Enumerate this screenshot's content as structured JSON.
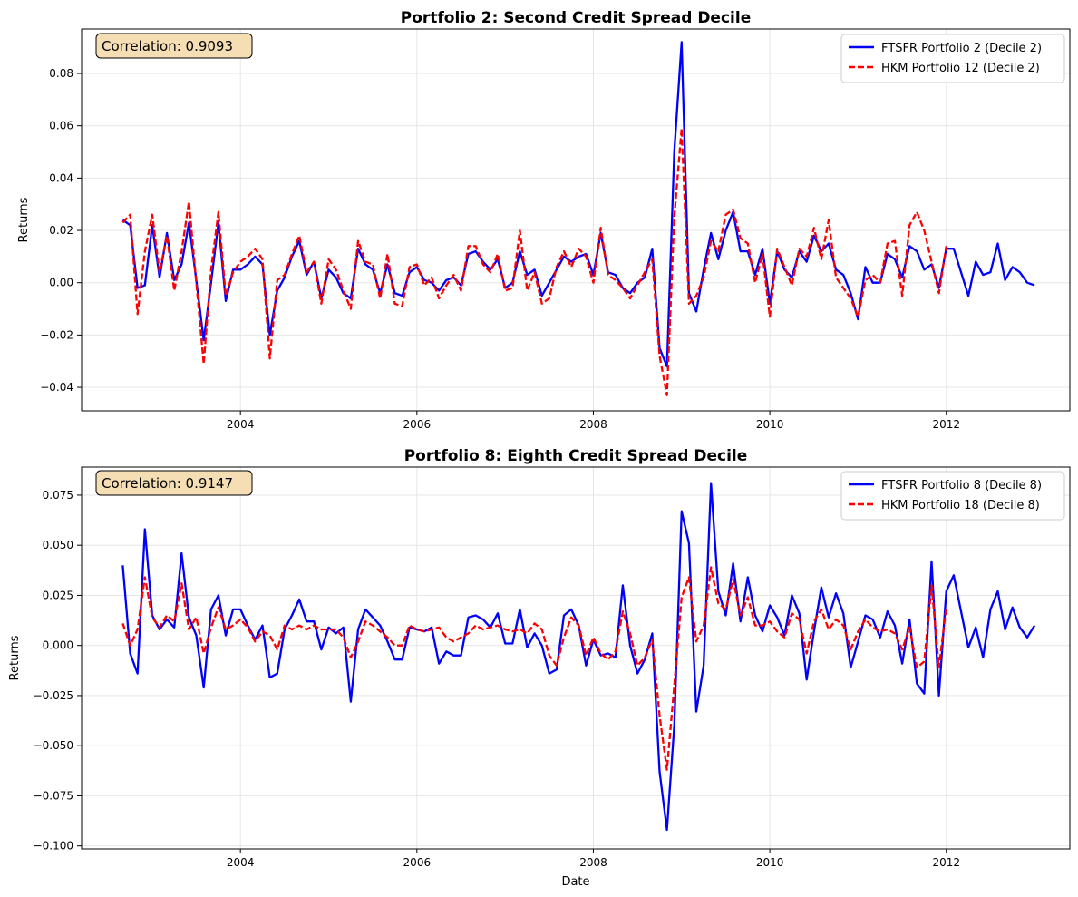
{
  "chart_data": [
    {
      "type": "line",
      "title": "Portfolio 2: Second Credit Spread Decile",
      "xlabel": "",
      "ylabel": "Returns",
      "annotation": "Correlation: 0.9093",
      "xlim": [
        2002.2,
        2013.4
      ],
      "ylim": [
        -0.049,
        0.097
      ],
      "xticks": [
        2004,
        2006,
        2008,
        2010,
        2012
      ],
      "xtick_labels": [
        "2004",
        "2006",
        "2008",
        "2010",
        "2012"
      ],
      "yticks": [
        -0.04,
        -0.02,
        0.0,
        0.02,
        0.04,
        0.06,
        0.08
      ],
      "ytick_labels": [
        "−0.04",
        "−0.02",
        "0.00",
        "0.02",
        "0.04",
        "0.06",
        "0.08"
      ],
      "grid": true,
      "legend_position": "top-right",
      "x_start": 2002.667,
      "x_step": 0.08333,
      "series": [
        {
          "name": "FTSFR Portfolio 2 (Decile 2)",
          "color": "#0000ff",
          "style": "solid",
          "values": [
            0.024,
            0.022,
            -0.002,
            -0.001,
            0.022,
            0.002,
            0.019,
            0.001,
            0.007,
            0.023,
            0.001,
            -0.022,
            0.0,
            0.023,
            -0.007,
            0.005,
            0.005,
            0.007,
            0.01,
            0.007,
            -0.02,
            -0.003,
            0.002,
            0.01,
            0.016,
            0.003,
            0.008,
            -0.006,
            0.005,
            0.002,
            -0.004,
            -0.006,
            0.013,
            0.007,
            0.005,
            -0.004,
            0.007,
            -0.004,
            -0.005,
            0.004,
            0.006,
            0.001,
            0.0,
            -0.003,
            0.001,
            0.002,
            -0.001,
            0.011,
            0.012,
            0.008,
            0.005,
            0.009,
            -0.002,
            0.0,
            0.012,
            0.003,
            0.005,
            -0.005,
            0.0,
            0.005,
            0.01,
            0.008,
            0.01,
            0.011,
            0.003,
            0.019,
            0.004,
            0.003,
            -0.002,
            -0.004,
            0.0,
            0.002,
            0.013,
            -0.025,
            -0.032,
            0.05,
            0.092,
            -0.004,
            -0.011,
            0.005,
            0.019,
            0.009,
            0.02,
            0.027,
            0.012,
            0.012,
            0.003,
            0.013,
            -0.008,
            0.012,
            0.005,
            0.002,
            0.012,
            0.008,
            0.018,
            0.012,
            0.015,
            0.005,
            0.003,
            -0.004,
            -0.014,
            0.006,
            0.0,
            0.0,
            0.011,
            0.009,
            0.002,
            0.014,
            0.012,
            0.005,
            0.007,
            -0.002,
            0.013,
            0.013,
            0.004,
            -0.005,
            0.008,
            0.003,
            0.004,
            0.015,
            0.001,
            0.006,
            0.004,
            0.0,
            -0.001
          ]
        },
        {
          "name": "HKM Portfolio 12 (Decile 2)",
          "color": "#ff0000",
          "style": "dashed",
          "values": [
            0.023,
            0.026,
            -0.012,
            0.012,
            0.026,
            0.004,
            0.018,
            -0.003,
            0.012,
            0.031,
            0.0,
            -0.031,
            0.005,
            0.027,
            -0.005,
            0.004,
            0.008,
            0.01,
            0.013,
            0.009,
            -0.029,
            0.001,
            0.003,
            0.011,
            0.018,
            0.004,
            0.008,
            -0.008,
            0.009,
            0.005,
            -0.003,
            -0.01,
            0.016,
            0.008,
            0.007,
            -0.006,
            0.011,
            -0.008,
            -0.009,
            0.006,
            0.007,
            -0.001,
            0.002,
            -0.006,
            -0.001,
            0.003,
            -0.003,
            0.014,
            0.014,
            0.007,
            0.004,
            0.011,
            -0.003,
            -0.002,
            0.02,
            -0.003,
            0.004,
            -0.008,
            -0.006,
            0.006,
            0.012,
            0.006,
            0.013,
            0.01,
            0.0,
            0.021,
            0.003,
            0.001,
            -0.002,
            -0.006,
            -0.001,
            0.004,
            0.009,
            -0.028,
            -0.043,
            0.025,
            0.059,
            -0.008,
            -0.005,
            0.002,
            0.016,
            0.012,
            0.026,
            0.028,
            0.017,
            0.015,
            0.0,
            0.011,
            -0.013,
            0.013,
            0.006,
            -0.001,
            0.013,
            0.01,
            0.021,
            0.009,
            0.024,
            0.002,
            -0.002,
            -0.006,
            -0.013,
            0.001,
            0.003,
            0.0,
            0.015,
            0.016,
            -0.005,
            0.022,
            0.027,
            0.02,
            0.008,
            -0.004,
            0.014
          ]
        }
      ]
    },
    {
      "type": "line",
      "title": "Portfolio 8: Eighth Credit Spread Decile",
      "xlabel": "Date",
      "ylabel": "Returns",
      "annotation": "Correlation: 0.9147",
      "xlim": [
        2002.2,
        2013.4
      ],
      "ylim": [
        -0.1015,
        0.089
      ],
      "xticks": [
        2004,
        2006,
        2008,
        2010,
        2012
      ],
      "xtick_labels": [
        "2004",
        "2006",
        "2008",
        "2010",
        "2012"
      ],
      "yticks": [
        -0.1,
        -0.075,
        -0.05,
        -0.025,
        0.0,
        0.025,
        0.05,
        0.075
      ],
      "ytick_labels": [
        "−0.100",
        "−0.075",
        "−0.050",
        "−0.025",
        "0.000",
        "0.025",
        "0.050",
        "0.075"
      ],
      "grid": true,
      "legend_position": "top-right",
      "x_start": 2002.667,
      "x_step": 0.08333,
      "series": [
        {
          "name": "FTSFR Portfolio 8 (Decile 8)",
          "color": "#0000ff",
          "style": "solid",
          "values": [
            0.04,
            -0.004,
            -0.014,
            0.058,
            0.015,
            0.008,
            0.013,
            0.009,
            0.046,
            0.014,
            0.005,
            -0.021,
            0.018,
            0.025,
            0.005,
            0.018,
            0.018,
            0.01,
            0.003,
            0.01,
            -0.016,
            -0.014,
            0.008,
            0.015,
            0.023,
            0.012,
            0.012,
            -0.002,
            0.009,
            0.006,
            0.009,
            -0.028,
            0.008,
            0.018,
            0.014,
            0.01,
            0.002,
            -0.007,
            -0.007,
            0.009,
            0.008,
            0.007,
            0.009,
            -0.009,
            -0.003,
            -0.005,
            -0.005,
            0.014,
            0.015,
            0.013,
            0.009,
            0.016,
            0.001,
            0.001,
            0.018,
            -0.001,
            0.006,
            0.0,
            -0.014,
            -0.012,
            0.015,
            0.018,
            0.01,
            -0.01,
            0.003,
            -0.005,
            -0.004,
            -0.006,
            0.03,
            0.0,
            -0.014,
            -0.007,
            0.006,
            -0.063,
            -0.092,
            -0.04,
            0.067,
            0.051,
            -0.033,
            -0.01,
            0.081,
            0.027,
            0.015,
            0.041,
            0.012,
            0.034,
            0.015,
            0.007,
            0.02,
            0.014,
            0.005,
            0.025,
            0.016,
            -0.017,
            0.007,
            0.029,
            0.014,
            0.026,
            0.016,
            -0.011,
            0.002,
            0.015,
            0.013,
            0.004,
            0.017,
            0.01,
            -0.009,
            0.013,
            -0.019,
            -0.024,
            0.042,
            -0.025,
            0.027,
            0.035,
            0.017,
            -0.001,
            0.009,
            -0.006,
            0.018,
            0.027,
            0.008,
            0.019,
            0.009,
            0.004,
            0.01
          ]
        },
        {
          "name": "HKM Portfolio 18 (Decile 8)",
          "color": "#ff0000",
          "style": "dashed",
          "values": [
            0.011,
            0.0,
            0.008,
            0.034,
            0.014,
            0.009,
            0.015,
            0.012,
            0.031,
            0.008,
            0.014,
            -0.004,
            0.009,
            0.019,
            0.008,
            0.01,
            0.013,
            0.009,
            0.002,
            0.007,
            0.005,
            -0.002,
            0.01,
            0.008,
            0.01,
            0.008,
            0.01,
            0.008,
            0.008,
            0.008,
            0.004,
            -0.006,
            0.002,
            0.012,
            0.01,
            0.007,
            0.004,
            0.0,
            0.0,
            0.01,
            0.008,
            0.007,
            0.008,
            0.009,
            0.004,
            0.002,
            0.004,
            0.006,
            0.01,
            0.008,
            0.009,
            0.01,
            0.008,
            0.007,
            0.008,
            0.006,
            0.011,
            0.008,
            -0.005,
            -0.01,
            0.004,
            0.014,
            0.01,
            -0.005,
            0.004,
            -0.004,
            -0.007,
            -0.003,
            0.017,
            0.006,
            -0.01,
            -0.006,
            0.003,
            -0.035,
            -0.062,
            -0.02,
            0.024,
            0.034,
            0.002,
            0.01,
            0.039,
            0.021,
            0.018,
            0.033,
            0.015,
            0.024,
            0.01,
            0.01,
            0.012,
            0.007,
            0.004,
            0.016,
            0.013,
            -0.004,
            0.012,
            0.018,
            0.008,
            0.013,
            0.01,
            -0.002,
            0.007,
            0.013,
            0.009,
            0.007,
            0.008,
            0.006,
            -0.002,
            0.009,
            -0.011,
            -0.008,
            0.03,
            -0.011,
            0.019
          ]
        }
      ]
    }
  ]
}
